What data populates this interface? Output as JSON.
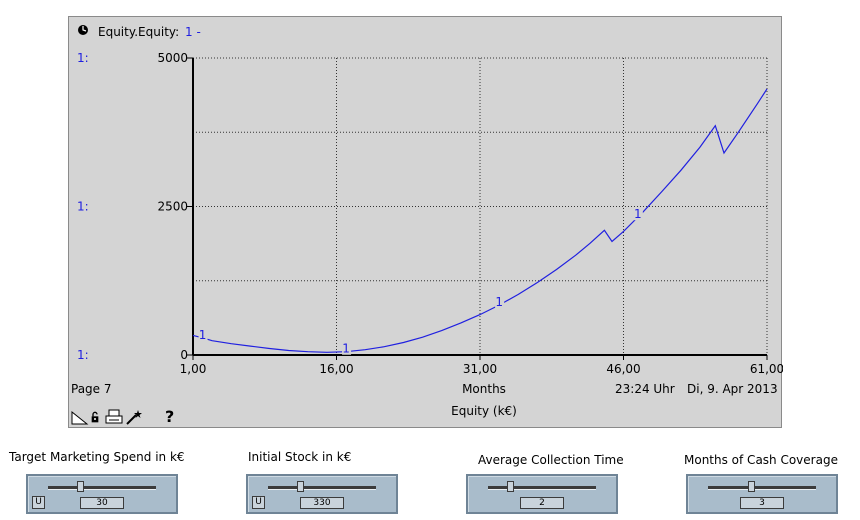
{
  "graph": {
    "header_title": "Equity.Equity:",
    "header_series": "1 -",
    "page_label": "Page 7",
    "time_label": "23:24 Uhr",
    "date_label": "Di, 9. Apr 2013",
    "help_label": "?"
  },
  "chart_data": {
    "type": "line",
    "xlabel": "Months",
    "ylabel": "",
    "title": "Equity (k€)",
    "xlim": [
      1,
      61
    ],
    "ylim": [
      0,
      5000
    ],
    "x_ticks": [
      1,
      16,
      31,
      46,
      61
    ],
    "x_tick_labels": [
      "1,00",
      "16,00",
      "31,00",
      "46,00",
      "61,00"
    ],
    "y_tick_labels": [
      "0",
      "2500",
      "5000"
    ],
    "y_scale_markers": [
      "1:",
      "1:",
      "1:"
    ],
    "grid": true,
    "series": [
      {
        "name": "1",
        "color": "#2020e0",
        "points": [
          [
            1,
            330
          ],
          [
            2,
            290
          ],
          [
            3,
            240
          ],
          [
            5,
            190
          ],
          [
            7,
            150
          ],
          [
            9,
            110
          ],
          [
            11,
            75
          ],
          [
            13,
            55
          ],
          [
            15,
            45
          ],
          [
            17,
            55
          ],
          [
            19,
            90
          ],
          [
            21,
            140
          ],
          [
            23,
            210
          ],
          [
            25,
            300
          ],
          [
            27,
            410
          ],
          [
            29,
            540
          ],
          [
            31,
            680
          ],
          [
            33,
            840
          ],
          [
            35,
            1020
          ],
          [
            37,
            1220
          ],
          [
            39,
            1440
          ],
          [
            41,
            1680
          ],
          [
            42.5,
            1880
          ],
          [
            44,
            2100
          ],
          [
            44.8,
            1910
          ],
          [
            46,
            2080
          ],
          [
            48,
            2400
          ],
          [
            50,
            2750
          ],
          [
            52,
            3110
          ],
          [
            54,
            3500
          ],
          [
            55.6,
            3860
          ],
          [
            56.5,
            3400
          ],
          [
            58,
            3750
          ],
          [
            60,
            4230
          ],
          [
            61,
            4480
          ]
        ],
        "label_x": [
          2,
          17,
          33,
          47.5
        ]
      }
    ]
  },
  "sliders": [
    {
      "label": "Target Marketing Spend in k€",
      "value": "30",
      "position": 0.3,
      "has_u": true
    },
    {
      "label": "Initial Stock in k€",
      "value": "330",
      "position": 0.3,
      "has_u": true
    },
    {
      "label": "Average Collection Time",
      "value": "2",
      "position": 0.2,
      "has_u": false
    },
    {
      "label": "Months of Cash Coverage",
      "value": "3",
      "position": 0.4,
      "has_u": false
    }
  ],
  "icons": [
    "clock-icon",
    "scale-toggle-icon",
    "lock-icon",
    "print-icon",
    "wand-icon",
    "help-icon"
  ]
}
